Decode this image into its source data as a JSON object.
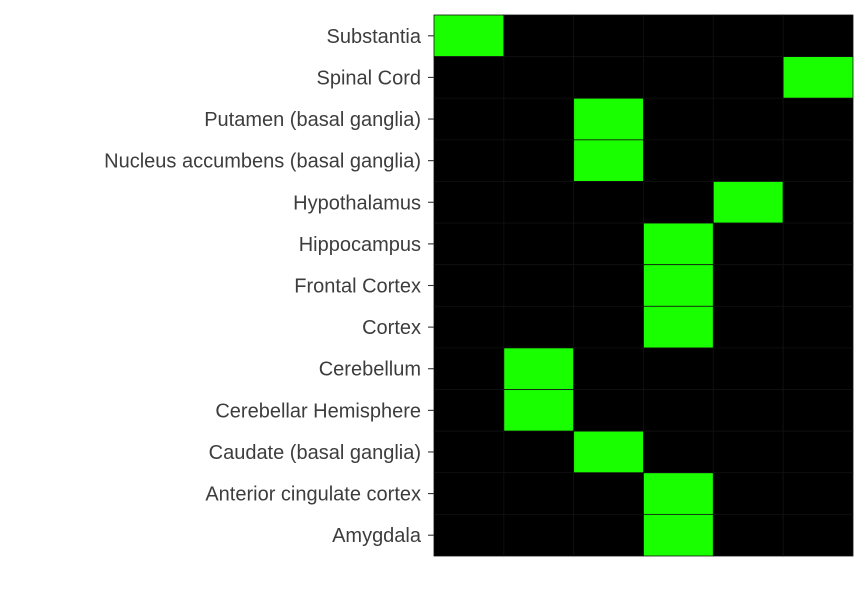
{
  "chart_data": {
    "type": "heatmap",
    "title": "",
    "xlabel": "",
    "ylabel": "",
    "rows": [
      "Substantia",
      "Spinal Cord",
      "Putamen (basal ganglia)",
      "Nucleus accumbens (basal ganglia)",
      "Hypothalamus",
      "Hippocampus",
      "Frontal Cortex",
      "Cortex",
      "Cerebellum",
      "Cerebellar Hemisphere",
      "Caudate (basal ganglia)",
      "Anterior cingulate cortex",
      "Amygdala"
    ],
    "n_columns": 6,
    "x_tick_labels": [],
    "values": [
      [
        1,
        0,
        0,
        0,
        0,
        0
      ],
      [
        0,
        0,
        0,
        0,
        0,
        1
      ],
      [
        0,
        0,
        1,
        0,
        0,
        0
      ],
      [
        0,
        0,
        1,
        0,
        0,
        0
      ],
      [
        0,
        0,
        0,
        0,
        1,
        0
      ],
      [
        0,
        0,
        0,
        1,
        0,
        0
      ],
      [
        0,
        0,
        0,
        1,
        0,
        0
      ],
      [
        0,
        0,
        0,
        1,
        0,
        0
      ],
      [
        0,
        1,
        0,
        0,
        0,
        0
      ],
      [
        0,
        1,
        0,
        0,
        0,
        0
      ],
      [
        0,
        0,
        1,
        0,
        0,
        0
      ],
      [
        0,
        0,
        0,
        1,
        0,
        0
      ],
      [
        0,
        0,
        0,
        1,
        0,
        0
      ]
    ],
    "legend": "none",
    "grid": false,
    "colors": {
      "high": "#1aff00",
      "low": "#000000",
      "cell_border": "#111111",
      "label_text": "#3d3d3d"
    }
  }
}
